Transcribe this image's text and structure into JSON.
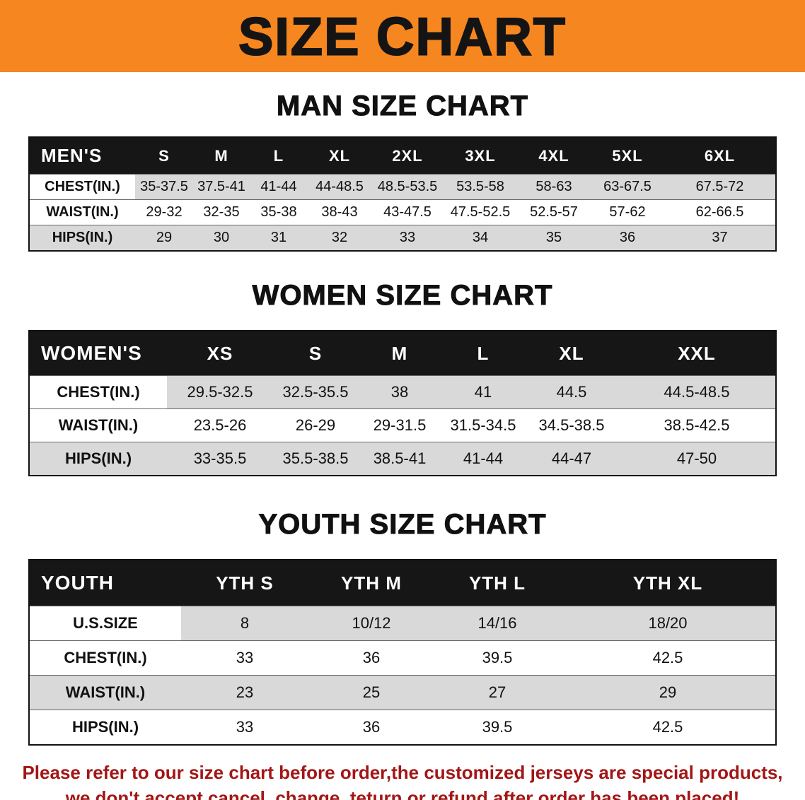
{
  "banner": {
    "title": "SIZE CHART",
    "bg_color": "#f6861f"
  },
  "sections": [
    {
      "id": "men",
      "heading": "MAN SIZE CHART",
      "table": {
        "header": [
          "MEN'S",
          "S",
          "M",
          "L",
          "XL",
          "2XL",
          "3XL",
          "4XL",
          "5XL",
          "6XL"
        ],
        "rows": [
          [
            "CHEST(IN.)",
            "35-37.5",
            "37.5-41",
            "41-44",
            "44-48.5",
            "48.5-53.5",
            "53.5-58",
            "58-63",
            "63-67.5",
            "67.5-72"
          ],
          [
            "WAIST(IN.)",
            "29-32",
            "32-35",
            "35-38",
            "38-43",
            "43-47.5",
            "47.5-52.5",
            "52.5-57",
            "57-62",
            "62-66.5"
          ],
          [
            "HIPS(IN.)",
            "29",
            "30",
            "31",
            "32",
            "33",
            "34",
            "35",
            "36",
            "37"
          ]
        ]
      }
    },
    {
      "id": "women",
      "heading": "WOMEN SIZE CHART",
      "table": {
        "header": [
          "WOMEN'S",
          "XS",
          "S",
          "M",
          "L",
          "XL",
          "XXL"
        ],
        "rows": [
          [
            "CHEST(IN.)",
            "29.5-32.5",
            "32.5-35.5",
            "38",
            "41",
            "44.5",
            "44.5-48.5"
          ],
          [
            "WAIST(IN.)",
            "23.5-26",
            "26-29",
            "29-31.5",
            "31.5-34.5",
            "34.5-38.5",
            "38.5-42.5"
          ],
          [
            "HIPS(IN.)",
            "33-35.5",
            "35.5-38.5",
            "38.5-41",
            "41-44",
            "44-47",
            "47-50"
          ]
        ]
      }
    },
    {
      "id": "youth",
      "heading": "YOUTH SIZE CHART",
      "table": {
        "header": [
          "YOUTH",
          "YTH S",
          "YTH M",
          "YTH L",
          "YTH XL"
        ],
        "rows": [
          [
            "U.S.SIZE",
            "8",
            "10/12",
            "14/16",
            "18/20"
          ],
          [
            "CHEST(IN.)",
            "33",
            "36",
            "39.5",
            "42.5"
          ],
          [
            "WAIST(IN.)",
            "23",
            "25",
            "27",
            "29"
          ],
          [
            "HIPS(IN.)",
            "33",
            "36",
            "39.5",
            "42.5"
          ]
        ]
      }
    }
  ],
  "footer_notice": {
    "line1": "Please refer to our size chart before order,the customized jerseys are special products,",
    "line2": "we don't accept cancel, change, teturn or refund after order has been placed!",
    "text_color": "#a31616"
  }
}
